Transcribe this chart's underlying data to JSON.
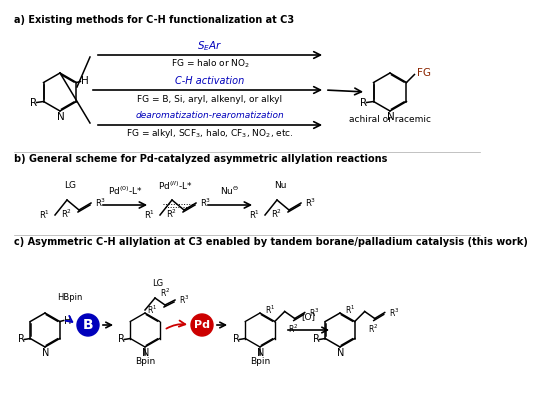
{
  "title_a": "a) Existing methods for C-H functionalization at C3",
  "title_b": "b) General scheme for Pd-catalyzed asymmetric allylation reactions",
  "title_c": "c) Asymmetric C-H allylation at C3 enabled by tandem borane/palladium catalysis (this work)",
  "bg_color": "#ffffff",
  "colors": {
    "blue": "#0000BB",
    "red": "#CC0000",
    "black": "#000000",
    "dark_red": "#8B2500"
  }
}
